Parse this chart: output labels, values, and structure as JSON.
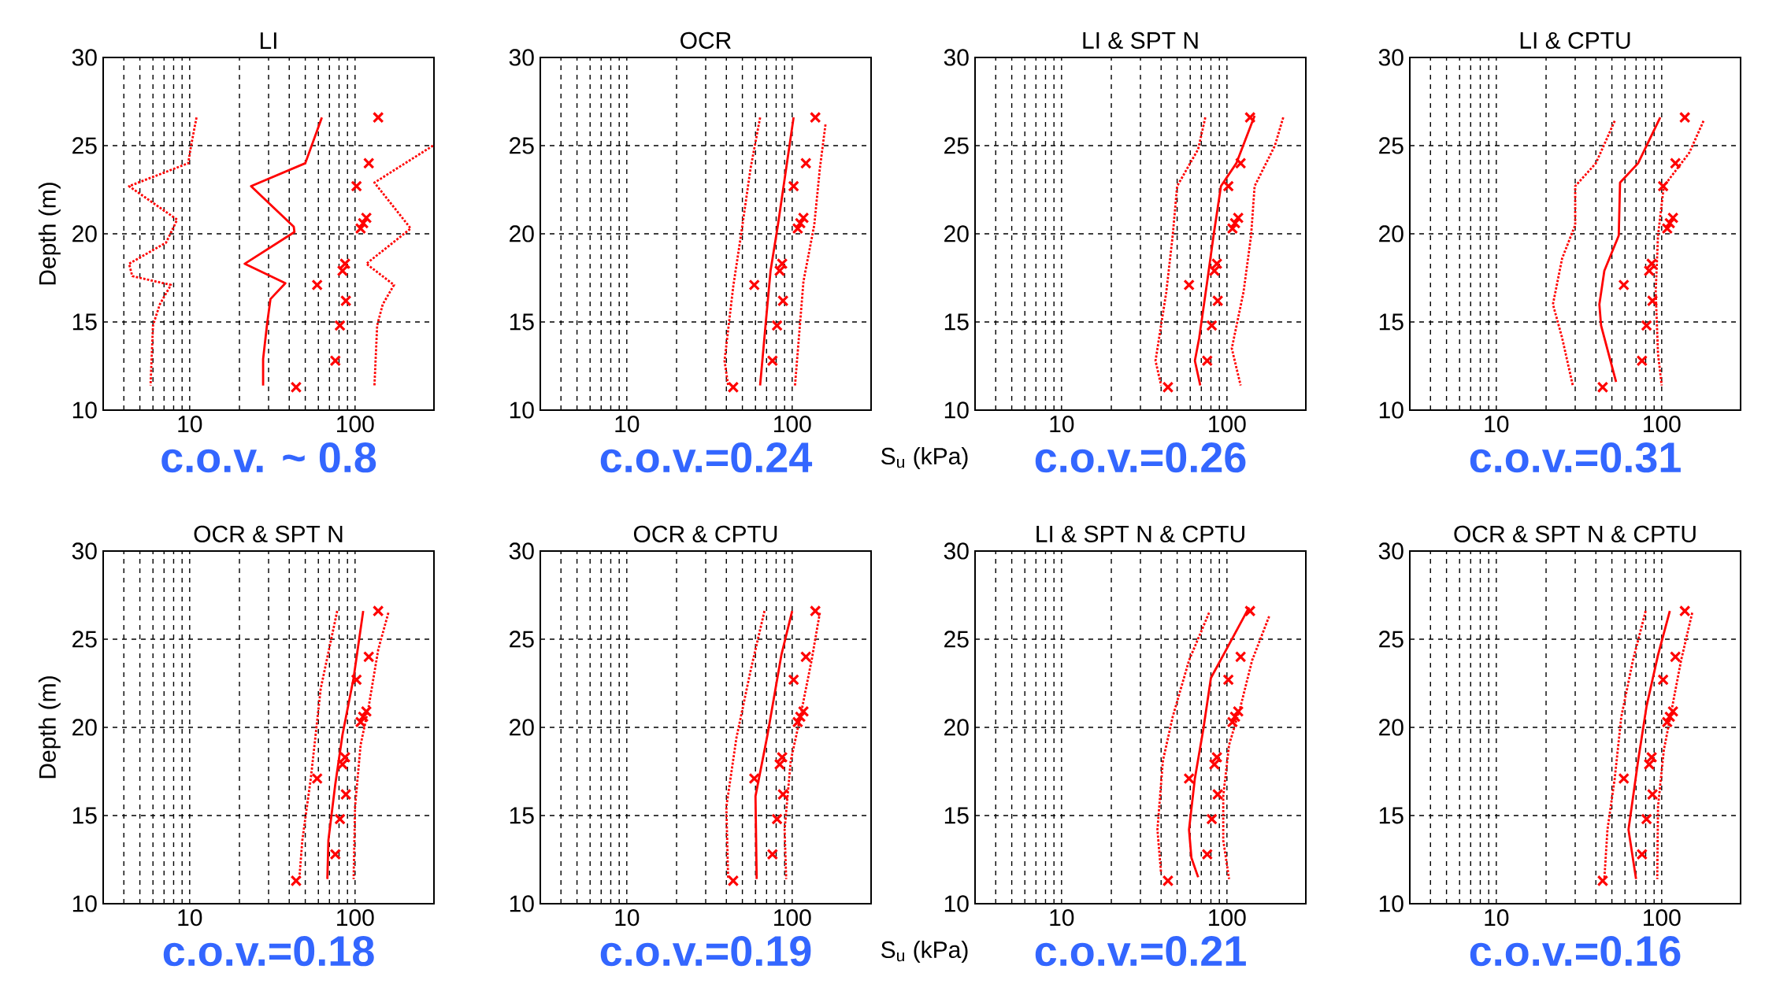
{
  "chart_data": [
    {
      "type": "line",
      "title": "LI",
      "ylabel": "Depth (m)",
      "xlim": [
        3,
        300
      ],
      "ylim": [
        10,
        30
      ],
      "log": "x",
      "grid": true,
      "xticks": [
        {
          "value": 4,
          "label": null
        },
        {
          "value": 5,
          "label": null
        },
        {
          "value": 6,
          "label": null
        },
        {
          "value": 7,
          "label": null
        },
        {
          "value": 8,
          "label": null
        },
        {
          "value": 9,
          "label": null
        },
        10,
        {
          "value": 20,
          "label": null
        },
        {
          "value": 30,
          "label": null
        },
        {
          "value": 40,
          "label": null
        },
        {
          "value": 50,
          "label": null
        },
        {
          "value": 60,
          "label": null
        },
        {
          "value": 70,
          "label": null
        },
        {
          "value": 80,
          "label": null
        },
        {
          "value": 90,
          "label": null
        },
        100
      ],
      "yticks": [
        10,
        15,
        20,
        25,
        30
      ],
      "annotations": [
        "c.o.v. ~ 0.8"
      ],
      "series": [
        {
          "color": "#ff0000",
          "line_style": "solid",
          "x": [
            63,
            50,
            23.5,
            42.6,
            43,
            21.5,
            37.9,
            30.8,
            29.4,
            27.8,
            27.8
          ],
          "values": [
            26.6,
            24.0,
            22.7,
            20.4,
            20.1,
            18.3,
            17.2,
            16.3,
            14.9,
            12.9,
            11.4
          ]
        },
        {
          "color": "#ff0000",
          "line_style": "dotted",
          "x": [
            11,
            10.2,
            9.8,
            4.3,
            8.4,
            7.2,
            4.3,
            4.5,
            7.7,
            6.6,
            6.0,
            5.8
          ],
          "values": [
            26.6,
            25.0,
            24.0,
            22.7,
            20.8,
            19.5,
            18.3,
            17.6,
            17.1,
            16.0,
            14.8,
            11.4
          ]
        },
        {
          "color": "#ff0000",
          "line_style": "dotted",
          "x": [
            296,
            131,
            217,
            117,
            172,
            147,
            136,
            131
          ],
          "values": [
            25.0,
            22.9,
            20.3,
            18.3,
            17.1,
            16.0,
            14.8,
            11.4
          ]
        },
        {
          "type": "scatter",
          "marker": "cross",
          "color": "#ff0000",
          "x": [
            138,
            121,
            102,
            117,
            112,
            108,
            87,
            84,
            59,
            88,
            81,
            76,
            44
          ],
          "values": [
            26.6,
            24.0,
            22.7,
            20.9,
            20.6,
            20.3,
            18.3,
            17.9,
            17.1,
            16.2,
            14.8,
            12.8,
            11.3
          ]
        }
      ]
    },
    {
      "type": "line",
      "title": "OCR",
      "xlabel": "S$_{u}$ (kPa)",
      "xlim": [
        3,
        300
      ],
      "ylim": [
        10,
        30
      ],
      "log": "x",
      "grid": true,
      "xticks": [
        {
          "value": 4,
          "label": null
        },
        {
          "value": 5,
          "label": null
        },
        {
          "value": 6,
          "label": null
        },
        {
          "value": 7,
          "label": null
        },
        {
          "value": 8,
          "label": null
        },
        {
          "value": 9,
          "label": null
        },
        10,
        {
          "value": 20,
          "label": null
        },
        {
          "value": 30,
          "label": null
        },
        {
          "value": 40,
          "label": null
        },
        {
          "value": 50,
          "label": null
        },
        {
          "value": 60,
          "label": null
        },
        {
          "value": 70,
          "label": null
        },
        {
          "value": 80,
          "label": null
        },
        {
          "value": 90,
          "label": null
        },
        100
      ],
      "yticks": [
        10,
        15,
        20,
        25,
        30
      ],
      "annotations": [
        "c.o.v.=0.24"
      ],
      "series": [
        {
          "color": "#ff0000",
          "line_style": "solid",
          "x": [
            102,
            82,
            74,
            69,
            64
          ],
          "values": [
            26.6,
            20.5,
            17.9,
            14.8,
            11.4
          ]
        },
        {
          "color": "#ff0000",
          "line_style": "dotted",
          "x": [
            64,
            56,
            49,
            44,
            39,
            41
          ],
          "values": [
            26.6,
            23.7,
            19.9,
            17.0,
            12.8,
            11.4
          ]
        },
        {
          "color": "#ff0000",
          "line_style": "dotted",
          "x": [
            159,
            147,
            136,
            117,
            104
          ],
          "values": [
            26.2,
            23.7,
            20.5,
            17.3,
            11.4
          ]
        },
        {
          "type": "scatter",
          "marker": "cross",
          "color": "#ff0000",
          "x": [
            138,
            121,
            102,
            117,
            112,
            108,
            87,
            84,
            59,
            88,
            81,
            76,
            44
          ],
          "values": [
            26.6,
            24.0,
            22.7,
            20.9,
            20.6,
            20.3,
            18.3,
            17.9,
            17.1,
            16.2,
            14.8,
            12.8,
            11.3
          ]
        }
      ]
    },
    {
      "type": "line",
      "title": "LI & SPT N",
      "xlim": [
        3,
        300
      ],
      "ylim": [
        10,
        30
      ],
      "log": "x",
      "grid": true,
      "xticks": [
        {
          "value": 4,
          "label": null
        },
        {
          "value": 5,
          "label": null
        },
        {
          "value": 6,
          "label": null
        },
        {
          "value": 7,
          "label": null
        },
        {
          "value": 8,
          "label": null
        },
        {
          "value": 9,
          "label": null
        },
        10,
        {
          "value": 20,
          "label": null
        },
        {
          "value": 30,
          "label": null
        },
        {
          "value": 40,
          "label": null
        },
        {
          "value": 50,
          "label": null
        },
        {
          "value": 60,
          "label": null
        },
        {
          "value": 70,
          "label": null
        },
        {
          "value": 80,
          "label": null
        },
        {
          "value": 90,
          "label": null
        },
        100
      ],
      "yticks": [
        10,
        15,
        20,
        25,
        30
      ],
      "annotations": [
        "c.o.v.=0.26"
      ],
      "series": [
        {
          "color": "#ff0000",
          "line_style": "solid",
          "x": [
            147,
            114,
            92,
            83,
            76,
            68,
            64,
            69
          ],
          "values": [
            26.7,
            24.0,
            22.7,
            19.9,
            17.3,
            14.1,
            12.8,
            11.4
          ]
        },
        {
          "color": "#ff0000",
          "line_style": "dotted",
          "x": [
            74,
            67,
            50,
            47,
            43,
            37,
            40
          ],
          "values": [
            26.6,
            24.8,
            22.7,
            19.9,
            16.7,
            12.8,
            11.4
          ]
        },
        {
          "color": "#ff0000",
          "line_style": "dotted",
          "x": [
            219,
            195,
            147,
            140,
            126,
            107,
            121
          ],
          "values": [
            26.6,
            25.0,
            22.7,
            19.9,
            16.7,
            13.5,
            11.4
          ]
        },
        {
          "type": "scatter",
          "marker": "cross",
          "color": "#ff0000",
          "x": [
            138,
            121,
            102,
            117,
            112,
            108,
            87,
            84,
            59,
            88,
            81,
            76,
            44
          ],
          "values": [
            26.6,
            24.0,
            22.7,
            20.9,
            20.6,
            20.3,
            18.3,
            17.9,
            17.1,
            16.2,
            14.8,
            12.8,
            11.3
          ]
        }
      ]
    },
    {
      "type": "line",
      "title": "LI & CPTU",
      "xlim": [
        3,
        300
      ],
      "ylim": [
        10,
        30
      ],
      "log": "x",
      "grid": true,
      "xticks": [
        {
          "value": 4,
          "label": null
        },
        {
          "value": 5,
          "label": null
        },
        {
          "value": 6,
          "label": null
        },
        {
          "value": 7,
          "label": null
        },
        {
          "value": 8,
          "label": null
        },
        {
          "value": 9,
          "label": null
        },
        10,
        {
          "value": 20,
          "label": null
        },
        {
          "value": 30,
          "label": null
        },
        {
          "value": 40,
          "label": null
        },
        {
          "value": 50,
          "label": null
        },
        {
          "value": 60,
          "label": null
        },
        {
          "value": 70,
          "label": null
        },
        {
          "value": 80,
          "label": null
        },
        {
          "value": 90,
          "label": null
        },
        100
      ],
      "yticks": [
        10,
        15,
        20,
        25,
        30
      ],
      "annotations": [
        "c.o.v.=0.31"
      ],
      "series": [
        {
          "color": "#ff0000",
          "line_style": "solid",
          "x": [
            98,
            72,
            56,
            55,
            45,
            42,
            43,
            53
          ],
          "values": [
            26.6,
            24.0,
            22.9,
            19.9,
            17.9,
            16.0,
            14.8,
            11.6
          ]
        },
        {
          "color": "#ff0000",
          "line_style": "dotted",
          "x": [
            52,
            40,
            30,
            30,
            25,
            22,
            25,
            29
          ],
          "values": [
            26.4,
            24.0,
            22.7,
            20.5,
            18.6,
            16.0,
            14.1,
            11.4
          ]
        },
        {
          "color": "#ff0000",
          "line_style": "dotted",
          "x": [
            179,
            147,
            103,
            95,
            92,
            95,
            100
          ],
          "values": [
            26.4,
            24.6,
            22.7,
            19.9,
            16.7,
            13.2,
            11.4
          ]
        },
        {
          "type": "scatter",
          "marker": "cross",
          "color": "#ff0000",
          "x": [
            138,
            121,
            102,
            117,
            112,
            108,
            87,
            84,
            59,
            88,
            81,
            76,
            44
          ],
          "values": [
            26.6,
            24.0,
            22.7,
            20.9,
            20.6,
            20.3,
            18.3,
            17.9,
            17.1,
            16.2,
            14.8,
            12.8,
            11.3
          ]
        }
      ]
    },
    {
      "type": "line",
      "title": "OCR & SPT N",
      "ylabel": "Depth (m)",
      "xlim": [
        3,
        300
      ],
      "ylim": [
        10,
        30
      ],
      "log": "x",
      "grid": true,
      "xticks": [
        {
          "value": 4,
          "label": null
        },
        {
          "value": 5,
          "label": null
        },
        {
          "value": 6,
          "label": null
        },
        {
          "value": 7,
          "label": null
        },
        {
          "value": 8,
          "label": null
        },
        {
          "value": 9,
          "label": null
        },
        10,
        {
          "value": 20,
          "label": null
        },
        {
          "value": 30,
          "label": null
        },
        {
          "value": 40,
          "label": null
        },
        {
          "value": 50,
          "label": null
        },
        {
          "value": 60,
          "label": null
        },
        {
          "value": 70,
          "label": null
        },
        {
          "value": 80,
          "label": null
        },
        {
          "value": 90,
          "label": null
        },
        100
      ],
      "yticks": [
        10,
        15,
        20,
        25,
        30
      ],
      "annotations": [
        "c.o.v.=0.18"
      ],
      "series": [
        {
          "color": "#ff0000",
          "line_style": "solid",
          "x": [
            112,
            98,
            84,
            76,
            69,
            68
          ],
          "values": [
            26.6,
            22.8,
            19.6,
            16.8,
            13.6,
            11.4
          ]
        },
        {
          "color": "#ff0000",
          "line_style": "dotted",
          "x": [
            78,
            62,
            54,
            48,
            46
          ],
          "values": [
            26.6,
            22.2,
            17.1,
            13.6,
            11.4
          ]
        },
        {
          "color": "#ff0000",
          "line_style": "dotted",
          "x": [
            159,
            138,
            121,
            108,
            100,
            98
          ],
          "values": [
            26.5,
            24.4,
            21.2,
            19.0,
            15.5,
            11.4
          ]
        },
        {
          "type": "scatter",
          "marker": "cross",
          "color": "#ff0000",
          "x": [
            138,
            121,
            102,
            117,
            112,
            108,
            87,
            84,
            59,
            88,
            81,
            76,
            44
          ],
          "values": [
            26.6,
            24.0,
            22.7,
            20.9,
            20.6,
            20.3,
            18.3,
            17.9,
            17.1,
            16.2,
            14.8,
            12.8,
            11.3
          ]
        }
      ]
    },
    {
      "type": "line",
      "title": "OCR & CPTU",
      "xlabel": "S$_{u}$ (kPa)",
      "xlim": [
        3,
        300
      ],
      "ylim": [
        10,
        30
      ],
      "log": "x",
      "grid": true,
      "xticks": [
        {
          "value": 4,
          "label": null
        },
        {
          "value": 5,
          "label": null
        },
        {
          "value": 6,
          "label": null
        },
        {
          "value": 7,
          "label": null
        },
        {
          "value": 8,
          "label": null
        },
        {
          "value": 9,
          "label": null
        },
        10,
        {
          "value": 20,
          "label": null
        },
        {
          "value": 30,
          "label": null
        },
        {
          "value": 40,
          "label": null
        },
        {
          "value": 50,
          "label": null
        },
        {
          "value": 60,
          "label": null
        },
        {
          "value": 70,
          "label": null
        },
        {
          "value": 80,
          "label": null
        },
        {
          "value": 90,
          "label": null
        },
        100
      ],
      "yticks": [
        10,
        15,
        20,
        25,
        30
      ],
      "annotations": [
        "c.o.v.=0.19"
      ],
      "series": [
        {
          "color": "#ff0000",
          "line_style": "solid",
          "x": [
            100,
            86,
            71,
            60,
            61
          ],
          "values": [
            26.6,
            24.1,
            19.6,
            16.1,
            11.4
          ]
        },
        {
          "color": "#ff0000",
          "line_style": "dotted",
          "x": [
            68,
            56,
            46,
            40,
            41
          ],
          "values": [
            26.6,
            23.2,
            19.4,
            15.5,
            11.4
          ]
        },
        {
          "color": "#ff0000",
          "line_style": "dotted",
          "x": [
            147,
            131,
            112,
            98,
            90,
            92
          ],
          "values": [
            26.5,
            23.8,
            20.6,
            18.1,
            14.2,
            11.4
          ]
        },
        {
          "type": "scatter",
          "marker": "cross",
          "color": "#ff0000",
          "x": [
            138,
            121,
            102,
            117,
            112,
            108,
            87,
            84,
            59,
            88,
            81,
            76,
            44
          ],
          "values": [
            26.6,
            24.0,
            22.7,
            20.9,
            20.6,
            20.3,
            18.3,
            17.9,
            17.1,
            16.2,
            14.8,
            12.8,
            11.3
          ]
        }
      ]
    },
    {
      "type": "line",
      "title": "LI & SPT N & CPTU",
      "xlim": [
        3,
        300
      ],
      "ylim": [
        10,
        30
      ],
      "log": "x",
      "grid": true,
      "xticks": [
        {
          "value": 4,
          "label": null
        },
        {
          "value": 5,
          "label": null
        },
        {
          "value": 6,
          "label": null
        },
        {
          "value": 7,
          "label": null
        },
        {
          "value": 8,
          "label": null
        },
        {
          "value": 9,
          "label": null
        },
        10,
        {
          "value": 20,
          "label": null
        },
        {
          "value": 30,
          "label": null
        },
        {
          "value": 40,
          "label": null
        },
        {
          "value": 50,
          "label": null
        },
        {
          "value": 60,
          "label": null
        },
        {
          "value": 70,
          "label": null
        },
        {
          "value": 80,
          "label": null
        },
        {
          "value": 90,
          "label": null
        },
        100
      ],
      "yticks": [
        10,
        15,
        20,
        25,
        30
      ],
      "annotations": [
        "c.o.v.=0.21"
      ],
      "series": [
        {
          "color": "#ff0000",
          "line_style": "solid",
          "x": [
            136,
            99,
            80,
            72,
            64,
            59,
            61,
            67
          ],
          "values": [
            26.8,
            24.4,
            22.8,
            19.9,
            17.1,
            14.2,
            12.6,
            11.5
          ]
        },
        {
          "color": "#ff0000",
          "line_style": "dotted",
          "x": [
            78,
            59,
            47,
            41,
            38,
            40
          ],
          "values": [
            26.5,
            23.8,
            20.6,
            18.1,
            14.2,
            11.7
          ]
        },
        {
          "color": "#ff0000",
          "line_style": "dotted",
          "x": [
            180,
            142,
            121,
            103,
            95,
            95,
            103
          ],
          "values": [
            26.3,
            23.8,
            21.2,
            19.0,
            16.1,
            13.6,
            11.4
          ]
        },
        {
          "type": "scatter",
          "marker": "cross",
          "color": "#ff0000",
          "x": [
            138,
            121,
            102,
            117,
            112,
            108,
            87,
            84,
            59,
            88,
            81,
            76,
            44
          ],
          "values": [
            26.6,
            24.0,
            22.7,
            20.9,
            20.6,
            20.3,
            18.3,
            17.9,
            17.1,
            16.2,
            14.8,
            12.8,
            11.3
          ]
        }
      ]
    },
    {
      "type": "line",
      "title": "OCR & SPT N & CPTU",
      "xlim": [
        3,
        300
      ],
      "ylim": [
        10,
        30
      ],
      "log": "x",
      "grid": true,
      "xticks": [
        {
          "value": 4,
          "label": null
        },
        {
          "value": 5,
          "label": null
        },
        {
          "value": 6,
          "label": null
        },
        {
          "value": 7,
          "label": null
        },
        {
          "value": 8,
          "label": null
        },
        {
          "value": 9,
          "label": null
        },
        10,
        {
          "value": 20,
          "label": null
        },
        {
          "value": 30,
          "label": null
        },
        {
          "value": 40,
          "label": null
        },
        {
          "value": 50,
          "label": null
        },
        {
          "value": 60,
          "label": null
        },
        {
          "value": 70,
          "label": null
        },
        {
          "value": 80,
          "label": null
        },
        {
          "value": 90,
          "label": null
        },
        100
      ],
      "yticks": [
        10,
        15,
        20,
        25,
        30
      ],
      "annotations": [
        "c.o.v.=0.16"
      ],
      "series": [
        {
          "color": "#ff0000",
          "line_style": "solid",
          "x": [
            112,
            95,
            81,
            72,
            63,
            70
          ],
          "values": [
            26.6,
            24.1,
            21.2,
            18.1,
            14.2,
            11.4
          ]
        },
        {
          "color": "#ff0000",
          "line_style": "dotted",
          "x": [
            80,
            67,
            57,
            52,
            47,
            45
          ],
          "values": [
            26.6,
            23.8,
            20.6,
            17.1,
            14.2,
            11.4
          ]
        },
        {
          "color": "#ff0000",
          "line_style": "dotted",
          "x": [
            153,
            131,
            116,
            103,
            95,
            94
          ],
          "values": [
            26.5,
            23.8,
            21.2,
            18.7,
            15.5,
            11.4
          ]
        },
        {
          "type": "scatter",
          "marker": "cross",
          "color": "#ff0000",
          "x": [
            138,
            121,
            102,
            117,
            112,
            108,
            87,
            84,
            59,
            88,
            81,
            76,
            44
          ],
          "values": [
            26.6,
            24.0,
            22.7,
            20.9,
            20.6,
            20.3,
            18.3,
            17.9,
            17.1,
            16.2,
            14.8,
            12.8,
            11.3
          ]
        }
      ]
    }
  ]
}
